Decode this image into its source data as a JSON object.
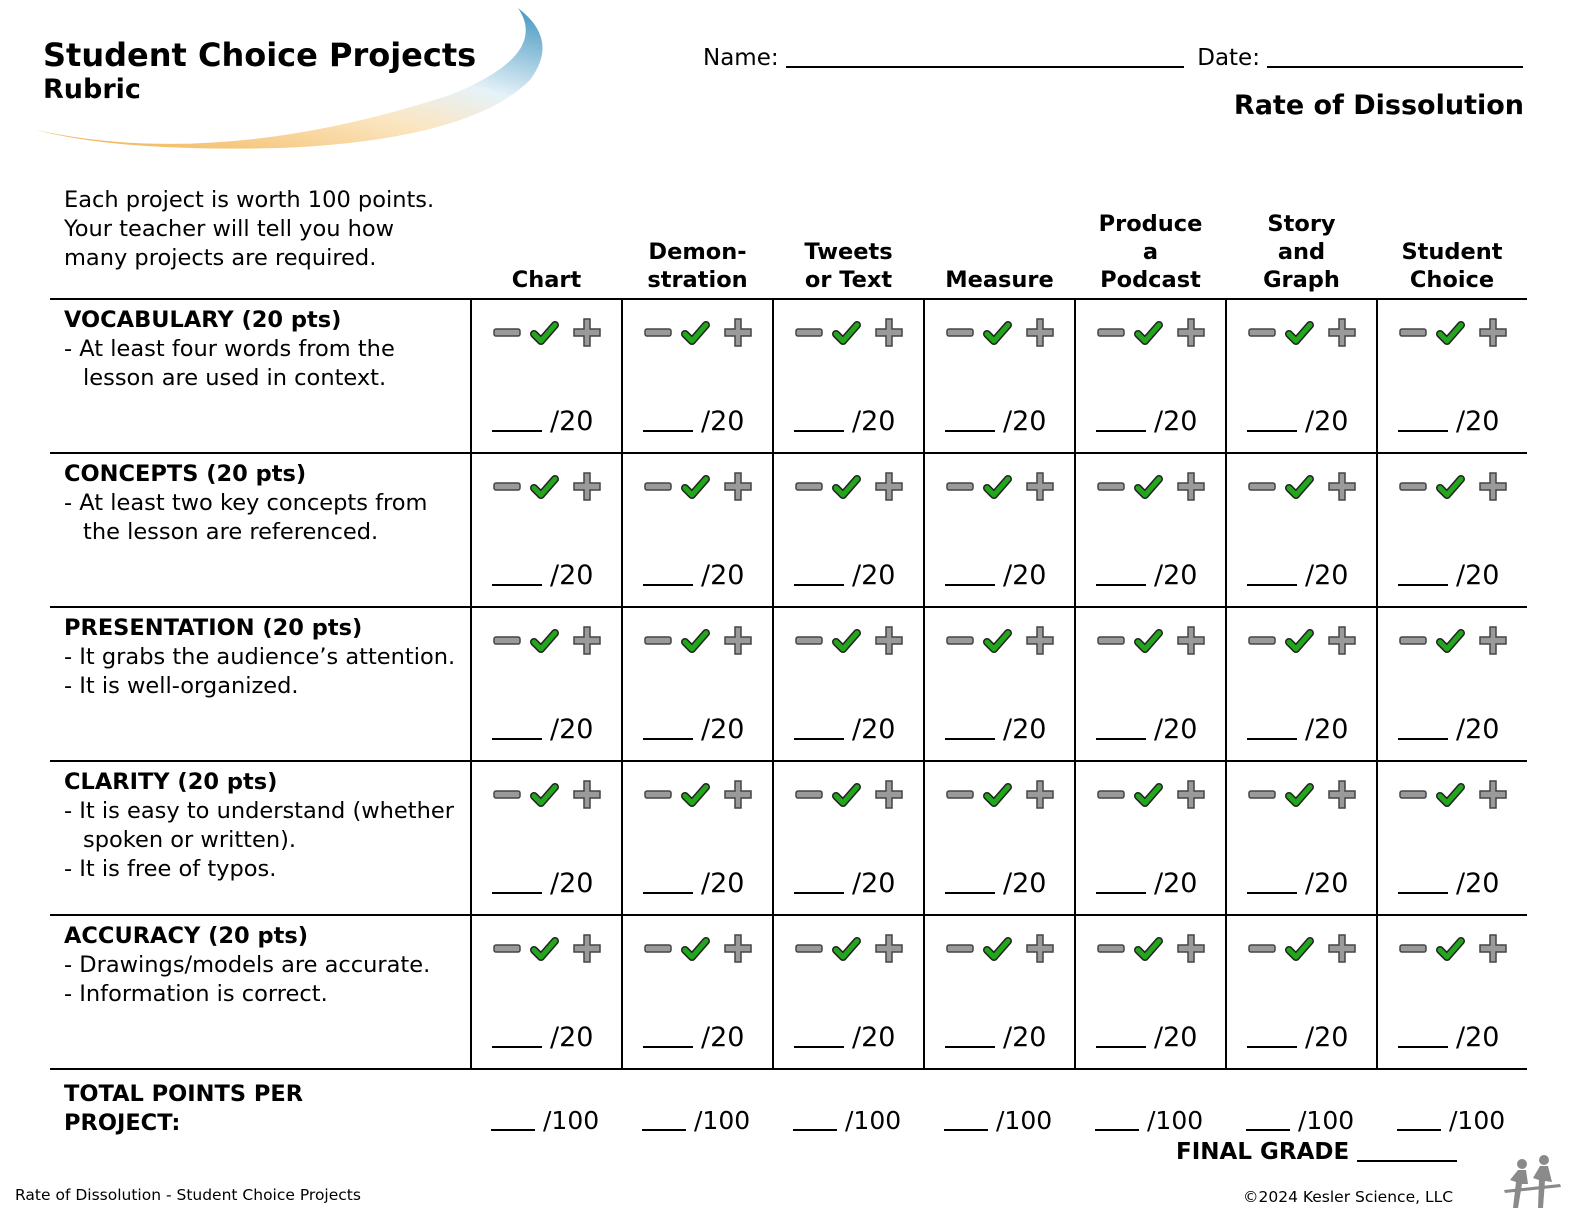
{
  "header": {
    "title": "Student Choice Projects",
    "subtitle": "Rubric",
    "name_label": "Name:",
    "date_label": "Date:",
    "topic": "Rate of Dissolution"
  },
  "intro": "Each project is worth 100 points. Your teacher will tell you how many projects are required.",
  "columns": [
    [
      "Chart"
    ],
    [
      "Demon-",
      "stration"
    ],
    [
      "Tweets",
      "or Text"
    ],
    [
      "Measure"
    ],
    [
      "Produce",
      "a",
      "Podcast"
    ],
    [
      "Story",
      "and",
      "Graph"
    ],
    [
      "Student",
      "Choice"
    ]
  ],
  "criteria": [
    {
      "title": "VOCABULARY (20 pts)",
      "lines": [
        "- At least four words from the lesson are used in context."
      ]
    },
    {
      "title": "CONCEPTS (20 pts)",
      "lines": [
        "- At least two key concepts from the lesson are referenced."
      ]
    },
    {
      "title": "PRESENTATION (20 pts)",
      "lines": [
        "-  It grabs the audience’s attention.",
        "-  It is well-organized."
      ]
    },
    {
      "title": "CLARITY (20 pts)",
      "lines": [
        "- It is easy to understand (whether spoken or written).",
        "- It is free of typos."
      ]
    },
    {
      "title": "ACCURACY (20 pts)",
      "lines": [
        "- Drawings/models are accurate.",
        "- Information is correct."
      ]
    }
  ],
  "score_suffix": "/20",
  "total": {
    "label_line1": "TOTAL POINTS PER",
    "label_line2": "PROJECT:",
    "suffix": "/100"
  },
  "icons": [
    "minus-icon",
    "checkmark-icon",
    "plus-icon"
  ],
  "colors": {
    "check": "#22a61c",
    "icon_gray": "#9a9a9a",
    "swoosh_blue": "#4a9cc4",
    "swoosh_orange": "#f2b04a"
  },
  "final_grade_label": "FINAL GRADE",
  "footer": {
    "left": "Rate of Dissolution - Student Choice Projects",
    "right": "©2024  Kesler Science, LLC"
  }
}
